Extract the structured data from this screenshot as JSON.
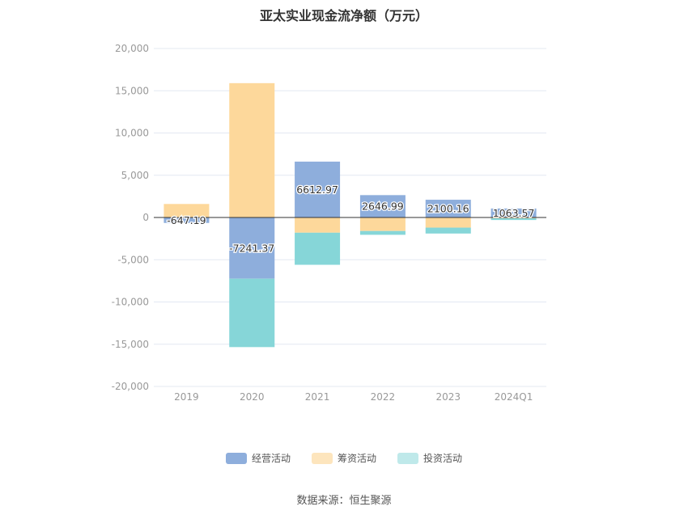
{
  "title": "亚太实业现金流净额（万元）",
  "source_text": "数据来源：恒生聚源",
  "colors": {
    "operating": "#8eaedc",
    "financing": "#fdd89b",
    "investing": "#86d6d8",
    "legend_operating": "#8eaedc",
    "legend_financing": "#fde5bd",
    "legend_investing": "#bfe9ea",
    "grid": "#e3e8f2",
    "zero_line": "#333333",
    "tick_text": "#999999"
  },
  "legend": [
    {
      "name": "经营活动",
      "color_key": "legend_operating"
    },
    {
      "name": "筹资活动",
      "color_key": "legend_financing"
    },
    {
      "name": "投资活动",
      "color_key": "legend_investing"
    }
  ],
  "chart_data": {
    "type": "bar",
    "stacked": true,
    "title": "亚太实业现金流净额（万元）",
    "categories": [
      "2019",
      "2020",
      "2021",
      "2022",
      "2023",
      "2024Q1"
    ],
    "ylim": [
      -20000,
      20000
    ],
    "yticks": [
      20000,
      15000,
      10000,
      5000,
      0,
      -5000,
      -10000,
      -15000,
      -20000
    ],
    "ytick_labels": [
      "20,000",
      "15,000",
      "10,000",
      "5,000",
      "0",
      "-5,000",
      "-10,000",
      "-15,000",
      "-20,000"
    ],
    "grid": true,
    "legend_position": "bottom",
    "series": [
      {
        "name": "经营活动",
        "color_key": "operating",
        "values": [
          -647.19,
          -7241.37,
          6612.97,
          2646.99,
          2100.16,
          1063.57
        ],
        "labels": [
          "-647.19",
          "-7241.37",
          "6612.97",
          "2646.99",
          "2100.16",
          "1063.57"
        ]
      },
      {
        "name": "筹资活动",
        "color_key": "financing",
        "values": [
          1600,
          15900,
          -1800,
          -1600,
          -1200,
          -100
        ]
      },
      {
        "name": "投资活动",
        "color_key": "investing",
        "values": [
          0,
          -8100,
          -3800,
          -450,
          -700,
          -200
        ]
      }
    ]
  }
}
